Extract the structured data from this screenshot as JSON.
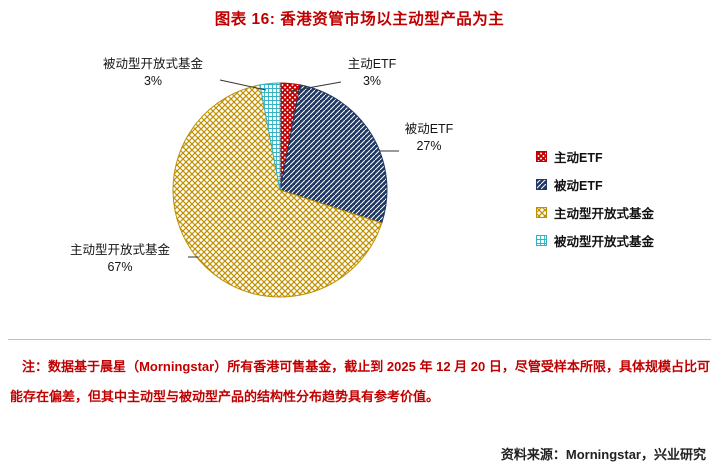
{
  "title": "图表 16: 香港资管市场以主动型产品为主",
  "chart_data": {
    "type": "pie",
    "title": "图表 16: 香港资管市场以主动型产品为主",
    "categories": [
      "主动ETF",
      "被动ETF",
      "主动型开放式基金",
      "被动型开放式基金"
    ],
    "values": [
      3,
      27,
      67,
      3
    ],
    "unit": "%",
    "data_labels": [
      "3%",
      "27%",
      "67%",
      "3%"
    ],
    "start_angle": "12-oclock",
    "direction": "clockwise",
    "colors": [
      "#C00000",
      "#1F3864",
      "#BF9000",
      "#33B3C4"
    ],
    "patterns": [
      "dense-crosshatch",
      "diagonal-stripes",
      "crosshatch",
      "fine-grid"
    ],
    "legend": {
      "position": "right",
      "labels": [
        "主动ETF",
        "被动ETF",
        "主动型开放式基金",
        "被动型开放式基金"
      ]
    }
  },
  "note": "注：数据基于晨星（Morningstar）所有香港可售基金，截止到 2025 年 12 月 20 日，尽管受样本所限，具体规模占比可能存在偏差，但其中主动型与被动型产品的结构性分布趋势具有参考价值。",
  "source": "资料来源：Morningstar，兴业研究",
  "colors": {
    "title_red": "#C00000",
    "note_red": "#C00000",
    "label_text": "#141414",
    "divider": "#C0C0C0",
    "leader_line": "#333333"
  }
}
